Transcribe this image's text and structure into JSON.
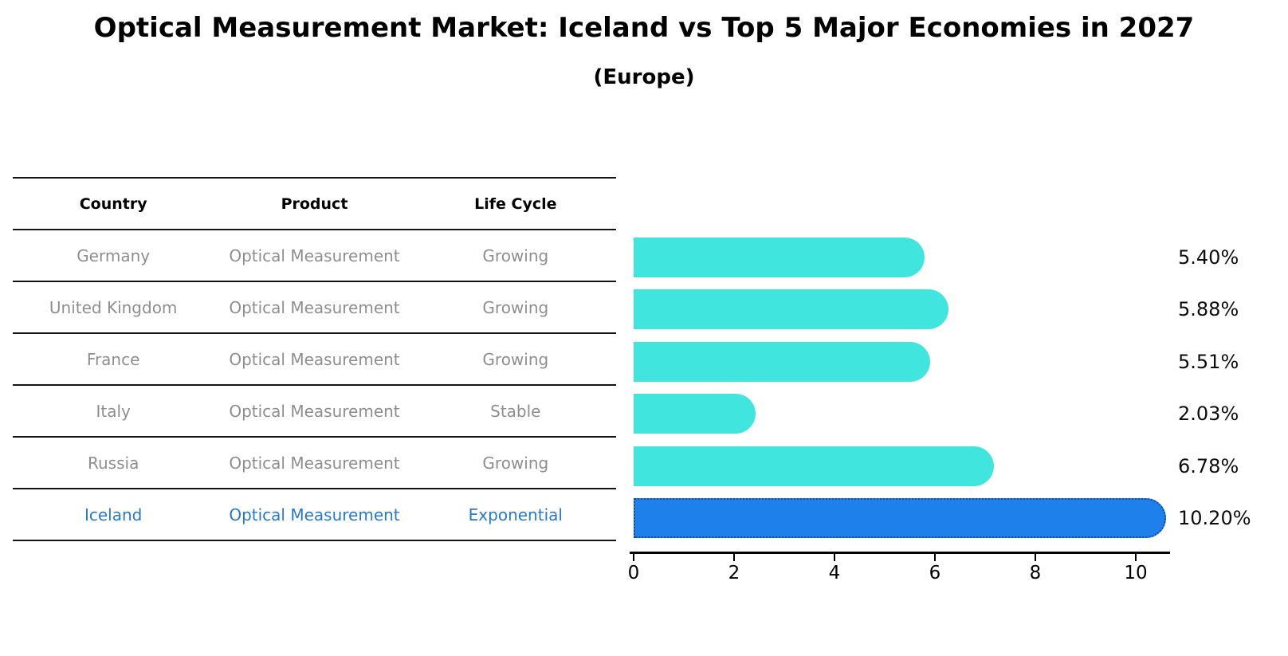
{
  "title": "Optical Measurement Market: Iceland vs Top 5 Major Economies in 2027",
  "subtitle": "(Europe)",
  "table": {
    "headers": [
      "Country",
      "Product",
      "Life Cycle"
    ],
    "rows": [
      {
        "country": "Germany",
        "product": "Optical Measurement",
        "life_cycle": "Growing"
      },
      {
        "country": "United Kingdom",
        "product": "Optical Measurement",
        "life_cycle": "Growing"
      },
      {
        "country": "France",
        "product": "Optical Measurement",
        "life_cycle": "Growing"
      },
      {
        "country": "Italy",
        "product": "Optical Measurement",
        "life_cycle": "Stable"
      },
      {
        "country": "Russia",
        "product": "Optical Measurement",
        "life_cycle": "Growing"
      },
      {
        "country": "Iceland",
        "product": "Optical Measurement",
        "life_cycle": "Exponential"
      }
    ],
    "highlight_row": "Iceland"
  },
  "chart_data": {
    "type": "bar",
    "orientation": "horizontal",
    "categories": [
      "Germany",
      "United Kingdom",
      "France",
      "Italy",
      "Russia",
      "Iceland"
    ],
    "values": [
      5.4,
      5.88,
      5.51,
      2.03,
      6.78,
      10.2
    ],
    "value_labels": [
      "5.40%",
      "5.88%",
      "5.51%",
      "2.03%",
      "6.78%",
      "10.20%"
    ],
    "xticks": [
      0,
      2,
      4,
      6,
      8,
      10
    ],
    "xlim": [
      0,
      10.7
    ],
    "grid": false,
    "legend": false,
    "bar_color": "#40E5DD",
    "highlight_bar_color": "#1E80EA",
    "highlight_category": "Iceland",
    "highlight_style": "dotted-border"
  },
  "colors": {
    "background": "#FFFFFF",
    "table_text": "#8E8E8E",
    "table_header_text": "#000000",
    "highlight_text": "#2979C9",
    "table_line": "#141414",
    "bar": "#40E5DD",
    "highlight_bar": "#1E80EA",
    "highlight_bar_dot": "#1548A5",
    "value_label_text": "#0D0D0D",
    "axis": "#000000"
  }
}
